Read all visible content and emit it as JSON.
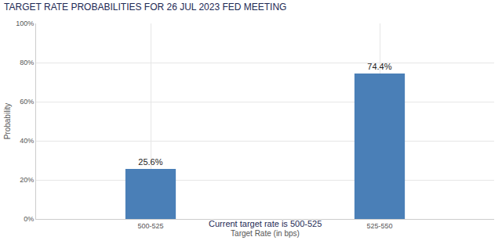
{
  "chart_data": {
    "type": "bar",
    "title": "TARGET RATE PROBABILITIES FOR 26 JUL 2023 FED MEETING",
    "subtitle": "Current target rate is 500-525",
    "x_label": "Target Rate (in bps)",
    "y_label": "Probability",
    "categories": [
      "500-525",
      "525-550"
    ],
    "values": [
      25.6,
      74.4
    ],
    "value_labels": [
      "25.6%",
      "74.4%"
    ],
    "color": "#4a7fb7",
    "ylim": [
      0,
      100
    ],
    "yticks": [
      {
        "value": 0,
        "label": "0%"
      },
      {
        "value": 20,
        "label": "20%"
      },
      {
        "value": 40,
        "label": "40%"
      },
      {
        "value": 60,
        "label": "60%"
      },
      {
        "value": 80,
        "label": "80%"
      },
      {
        "value": 100,
        "label": "100%"
      }
    ],
    "grid": true,
    "data_labels": true
  }
}
